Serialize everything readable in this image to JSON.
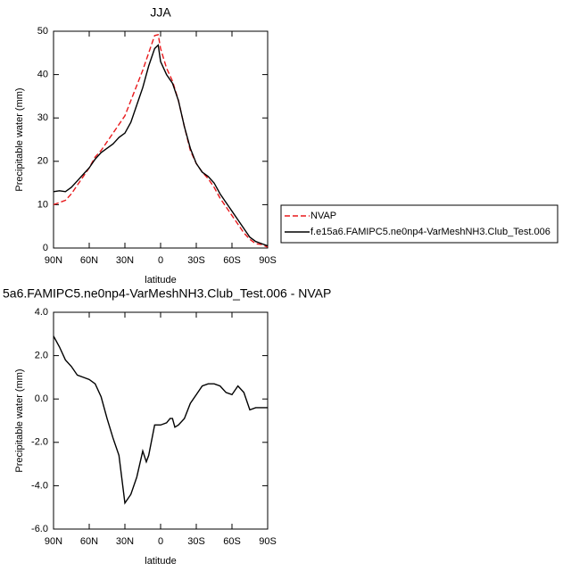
{
  "chart_data": [
    {
      "type": "line",
      "title": "JJA",
      "xlabel": "latitude",
      "ylabel": "Precipitable water (mm)",
      "x": [
        90,
        85,
        80,
        75,
        70,
        65,
        60,
        55,
        50,
        45,
        40,
        35,
        30,
        25,
        20,
        15,
        10,
        5,
        2,
        0,
        -5,
        -10,
        -15,
        -20,
        -25,
        -30,
        -35,
        -40,
        -45,
        -50,
        -55,
        -60,
        -65,
        -70,
        -75,
        -80,
        -85,
        -90
      ],
      "series": [
        {
          "name": "NVAP",
          "color": "#e8191c",
          "style": "dashed",
          "values": [
            10,
            10.5,
            11,
            12.5,
            14.5,
            16.5,
            18.5,
            21,
            22.5,
            24.5,
            26.5,
            28.5,
            30.5,
            34,
            37.5,
            41,
            45,
            49,
            49.2,
            46,
            41.5,
            38.5,
            34,
            28,
            22.5,
            19.5,
            17.5,
            16,
            14,
            11.5,
            9.5,
            7.5,
            5.5,
            3.5,
            2,
            1,
            0.8,
            0.2
          ]
        },
        {
          "name": "f.e15a6.FAMIPC5.ne0np4-VarMeshNH3.Club_Test.006",
          "color": "#000000",
          "style": "solid",
          "values": [
            13,
            13.2,
            13,
            14,
            15.5,
            17,
            18.5,
            20.5,
            22,
            23,
            24,
            25.5,
            26.5,
            29,
            33,
            37,
            42,
            46,
            46.8,
            43,
            40,
            38,
            34,
            28,
            23,
            19.5,
            17.5,
            16.5,
            15,
            12.5,
            10.5,
            8.5,
            6.5,
            4.5,
            2.5,
            1.5,
            1,
            0.5
          ]
        }
      ],
      "xlim": [
        90,
        -90
      ],
      "xticks": [
        {
          "value": 90,
          "label": "90N"
        },
        {
          "value": 60,
          "label": "60N"
        },
        {
          "value": 30,
          "label": "30N"
        },
        {
          "value": 0,
          "label": "0"
        },
        {
          "value": -30,
          "label": "30S"
        },
        {
          "value": -60,
          "label": "60S"
        },
        {
          "value": -90,
          "label": "90S"
        }
      ],
      "ylim": [
        0,
        50
      ],
      "yticks": [
        0,
        10,
        20,
        30,
        40,
        50
      ],
      "legend": "right"
    },
    {
      "type": "line",
      "title": "5a6.FAMIPC5.ne0np4-VarMeshNH3.Club_Test.006 - NVAP",
      "xlabel": "latitude",
      "ylabel": "Precipitable water (mm)",
      "x": [
        90,
        85,
        80,
        75,
        70,
        65,
        60,
        55,
        50,
        45,
        40,
        35,
        30,
        25,
        20,
        15,
        12,
        10,
        5,
        0,
        -5,
        -8,
        -10,
        -12,
        -15,
        -20,
        -25,
        -30,
        -35,
        -40,
        -45,
        -50,
        -55,
        -60,
        -65,
        -70,
        -75,
        -80,
        -85,
        -90
      ],
      "color": "#000000",
      "values": [
        2.9,
        2.4,
        1.8,
        1.5,
        1.1,
        1.0,
        0.9,
        0.7,
        0.1,
        -0.9,
        -1.8,
        -2.6,
        -4.8,
        -4.4,
        -3.6,
        -2.4,
        -2.9,
        -2.6,
        -1.2,
        -1.2,
        -1.1,
        -0.9,
        -0.9,
        -1.3,
        -1.2,
        -0.9,
        -0.2,
        0.2,
        0.6,
        0.7,
        0.7,
        0.6,
        0.3,
        0.2,
        0.6,
        0.3,
        -0.5,
        -0.4,
        -0.4,
        -0.4
      ],
      "xlim": [
        90,
        -90
      ],
      "xticks": [
        {
          "value": 90,
          "label": "90N"
        },
        {
          "value": 60,
          "label": "60N"
        },
        {
          "value": 30,
          "label": "30N"
        },
        {
          "value": 0,
          "label": "0"
        },
        {
          "value": -30,
          "label": "30S"
        },
        {
          "value": -60,
          "label": "60S"
        },
        {
          "value": -90,
          "label": "90S"
        }
      ],
      "ylim": [
        -6,
        4
      ],
      "yticks": [
        {
          "value": -6,
          "label": "-6.0"
        },
        {
          "value": -4,
          "label": "-4.0"
        },
        {
          "value": -2,
          "label": "-2.0"
        },
        {
          "value": 0,
          "label": "0.0"
        },
        {
          "value": 2,
          "label": "2.0"
        },
        {
          "value": 4,
          "label": "4.0"
        }
      ]
    }
  ]
}
